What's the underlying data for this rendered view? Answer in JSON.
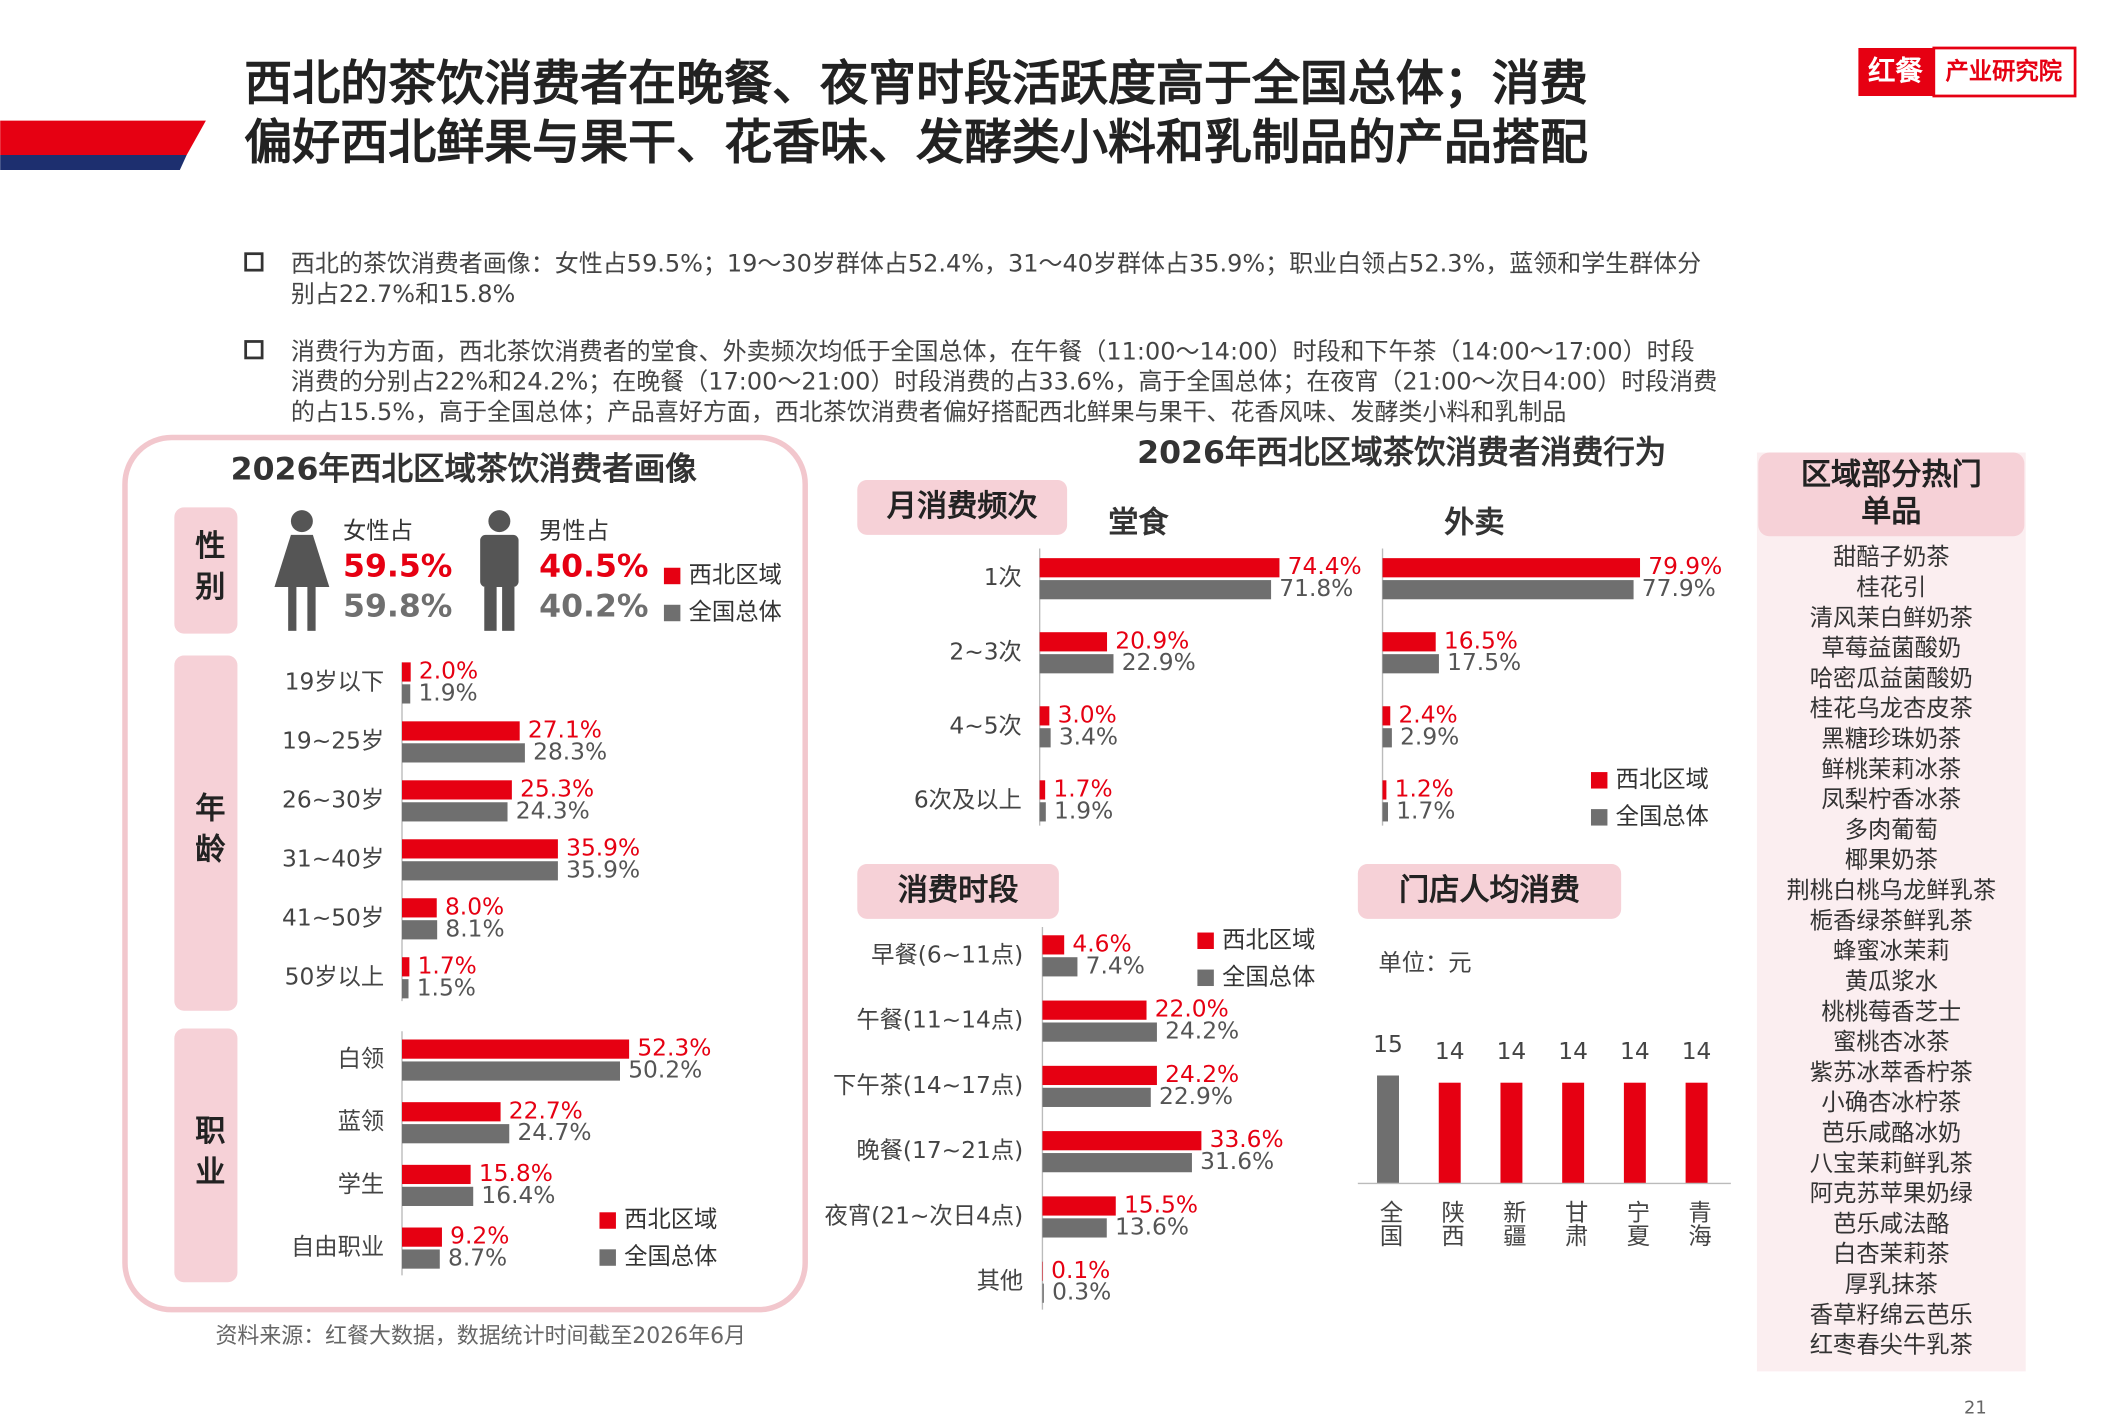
{
  "header": {
    "title": [
      "西北的茶饮消费者在晚餐、夜宵时段活跃度高于全国总体；消费",
      "偏好西北鲜果与果干、花香味、发酵类小料和乳制品的产品搭配"
    ],
    "logo_mark": "红餐",
    "logo_text": "产业研究院"
  },
  "bullets": [
    [
      "西北的茶饮消费者画像：女性占59.5%；19～30岁群体占52.4%，31～40岁群体占35.9%；职业白领占52.3%，蓝领和学生群体分",
      "别占22.7%和15.8%"
    ],
    [
      "消费行为方面，西北茶饮消费者的堂食、外卖频次均低于全国总体，在午餐（11:00～14:00）时段和下午茶（14:00～17:00）时段",
      "消费的分别占22%和24.2%；在晚餐（17:00～21:00）时段消费的占33.6%，高于全国总体；在夜宵（21:00～次日4:00）时段消费",
      "的占15.5%，高于全国总体；产品喜好方面，西北茶饮消费者偏好搭配西北鲜果与果干、花香风味、发酵类小料和乳制品"
    ]
  ],
  "sections": {
    "portrait": "2026年西北区域茶饮消费者画像",
    "behavior": "2026年西北区域茶饮消费者消费行为"
  },
  "chart_data": [
    {
      "type": "gender",
      "label": "性别",
      "categories": [
        "女性占",
        "男性占"
      ],
      "legend": true,
      "series": [
        {
          "name": "西北区域",
          "color": "#e60012",
          "values": [
            59.5,
            40.5
          ],
          "value_labels": [
            "59.5%",
            "40.5%"
          ]
        },
        {
          "name": "全国总体",
          "color": "#6f6f6f",
          "values": [
            59.8,
            40.2
          ],
          "value_labels": [
            "59.8%",
            "40.2%"
          ]
        }
      ]
    },
    {
      "type": "hbar",
      "label": "年龄",
      "categories": [
        "19岁以下",
        "19~25岁",
        "26~30岁",
        "31~40岁",
        "41~50岁",
        "50岁以上"
      ],
      "xlim": [
        0,
        60
      ],
      "series": [
        {
          "color": "#e60012",
          "values": [
            2.0,
            27.1,
            25.3,
            35.9,
            8.0,
            1.7
          ],
          "value_labels": [
            "2.0%",
            "27.1%",
            "25.3%",
            "35.9%",
            "8.0%",
            "1.7%"
          ]
        },
        {
          "color": "#6f6f6f",
          "values": [
            1.9,
            28.3,
            24.3,
            35.9,
            8.1,
            1.5
          ],
          "value_labels": [
            "1.9%",
            "28.3%",
            "24.3%",
            "35.9%",
            "8.1%",
            "1.5%"
          ]
        }
      ]
    },
    {
      "type": "hbar",
      "label": "职业",
      "categories": [
        "白领",
        "蓝领",
        "学生",
        "自由职业"
      ],
      "xlim": [
        0,
        60
      ],
      "legend": true,
      "series": [
        {
          "name": "西北区域",
          "color": "#e60012",
          "values": [
            52.3,
            22.7,
            15.8,
            9.2
          ],
          "value_labels": [
            "52.3%",
            "22.7%",
            "15.8%",
            "9.2%"
          ]
        },
        {
          "name": "全国总体",
          "color": "#6f6f6f",
          "values": [
            50.2,
            24.7,
            16.4,
            8.7
          ],
          "value_labels": [
            "50.2%",
            "24.7%",
            "16.4%",
            "8.7%"
          ]
        }
      ]
    },
    {
      "type": "hbar_panels",
      "title": "月消费频次",
      "categories": [
        "1次",
        "2~3次",
        "4~5次",
        "6次及以上"
      ],
      "xlim": [
        0,
        100
      ],
      "legend": [
        {
          "name": "西北区域",
          "color": "#e60012"
        },
        {
          "name": "全国总体",
          "color": "#6f6f6f"
        }
      ],
      "panels": [
        {
          "title": "堂食",
          "series": [
            {
              "values": [
                74.4,
                20.9,
                3.0,
                1.7
              ],
              "value_labels": [
                "74.4%",
                "20.9%",
                "3.0%",
                "1.7%"
              ]
            },
            {
              "values": [
                71.8,
                22.9,
                3.4,
                1.9
              ],
              "value_labels": [
                "71.8%",
                "22.9%",
                "3.4%",
                "1.9%"
              ]
            }
          ]
        },
        {
          "title": "外卖",
          "series": [
            {
              "values": [
                79.9,
                16.5,
                2.4,
                1.2
              ],
              "value_labels": [
                "79.9%",
                "16.5%",
                "2.4%",
                "1.2%"
              ]
            },
            {
              "values": [
                77.9,
                17.5,
                2.9,
                1.7
              ],
              "value_labels": [
                "77.9%",
                "17.5%",
                "2.9%",
                "1.7%"
              ]
            }
          ]
        }
      ]
    },
    {
      "type": "hbar",
      "title": "消费时段",
      "categories": [
        "早餐(6~11点)",
        "午餐(11~14点)",
        "下午茶(14~17点)",
        "晚餐(17~21点)",
        "夜宵(21~次日4点)",
        "其他"
      ],
      "xlim": [
        0,
        40
      ],
      "legend": true,
      "series": [
        {
          "name": "西北区域",
          "color": "#e60012",
          "values": [
            4.6,
            22.0,
            24.2,
            33.6,
            15.5,
            0.1
          ],
          "value_labels": [
            "4.6%",
            "22.0%",
            "24.2%",
            "33.6%",
            "15.5%",
            "0.1%"
          ]
        },
        {
          "name": "全国总体",
          "color": "#6f6f6f",
          "values": [
            7.4,
            24.2,
            22.9,
            31.6,
            13.6,
            0.3
          ],
          "value_labels": [
            "7.4%",
            "24.2%",
            "22.9%",
            "31.6%",
            "13.6%",
            "0.3%"
          ]
        }
      ]
    },
    {
      "type": "vbar",
      "title": "门店人均消费",
      "unit": "单位：元",
      "categories": [
        "全国",
        "陕西",
        "新疆",
        "甘肃",
        "宁夏",
        "青海"
      ],
      "values": [
        15,
        14,
        14,
        14,
        14,
        14
      ],
      "colors": [
        "#6f6f6f",
        "#e60012",
        "#e60012",
        "#e60012",
        "#e60012",
        "#e60012"
      ],
      "ylim": [
        0,
        20
      ]
    }
  ],
  "hot_items": {
    "title": [
      "区域部分热门",
      "单品"
    ],
    "items": [
      "甜醅子奶茶",
      "桂花引",
      "清风茉白鲜奶茶",
      "草莓益菌酸奶",
      "哈密瓜益菌酸奶",
      "桂花乌龙杏皮茶",
      "黑糖珍珠奶茶",
      "鲜桃茉莉冰茶",
      "凤梨柠香冰茶",
      "多肉葡萄",
      "椰果奶茶",
      "荆桃白桃乌龙鲜乳茶",
      "栀香绿茶鲜乳茶",
      "蜂蜜冰茉莉",
      "黄瓜浆水",
      "桃桃莓香芝士",
      "蜜桃杏冰茶",
      "紫苏冰萃香柠茶",
      "小确杏冰柠茶",
      "芭乐咸酪冰奶",
      "八宝茉莉鲜乳茶",
      "阿克苏苹果奶绿",
      "芭乐咸法酪",
      "白杏茉莉茶",
      "厚乳抹茶",
      "香草籽绵云芭乐",
      "红枣春尖牛乳茶"
    ]
  },
  "footer": {
    "source": "资料来源：红餐大数据，数据统计时间截至2026年6月",
    "page": "21"
  }
}
